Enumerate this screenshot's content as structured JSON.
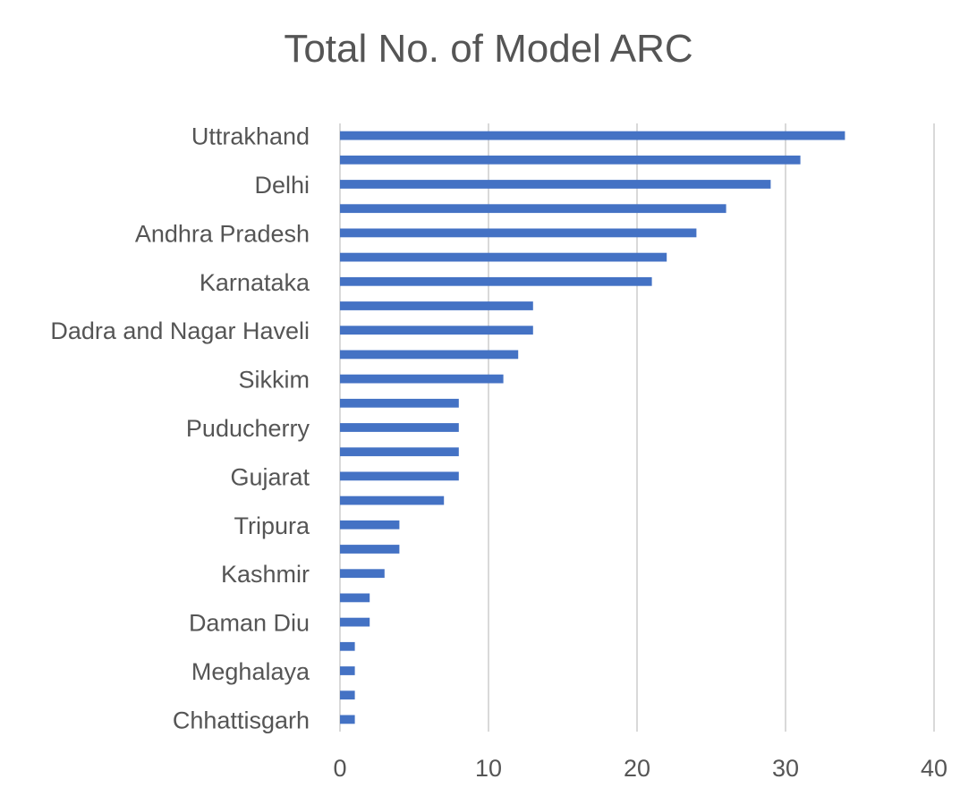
{
  "chart_data": {
    "type": "bar",
    "orientation": "horizontal",
    "title": "Total No. of Model ARC",
    "xlabel": "",
    "ylabel": "",
    "xlim": [
      0,
      40
    ],
    "x_ticks": [
      "0",
      "10",
      "20",
      "30",
      "40"
    ],
    "grid": "vertical",
    "legend": "none",
    "bar_color": "#4472C4",
    "categories": [
      "Uttrakhand",
      "",
      "Delhi",
      "",
      "Andhra Pradesh",
      "",
      "Karnataka",
      "",
      "Dadra and Nagar Haveli",
      "",
      "Sikkim",
      "",
      "Puducherry",
      "",
      "Gujarat",
      "",
      "Tripura",
      "",
      "Kashmir",
      "",
      "Daman Diu",
      "",
      "Meghalaya",
      "",
      "Chhattisgarh"
    ],
    "values": [
      34,
      31,
      29,
      26,
      24,
      22,
      21,
      13,
      13,
      12,
      11,
      8,
      8,
      8,
      8,
      7,
      4,
      4,
      3,
      2,
      2,
      1,
      1,
      1,
      1
    ]
  }
}
